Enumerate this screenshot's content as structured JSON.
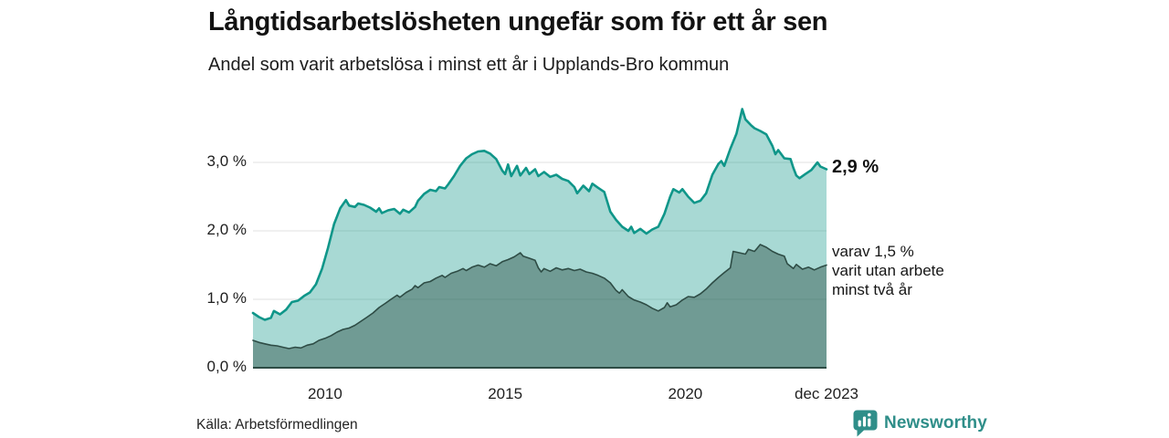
{
  "source": {
    "label": "Källa: Arbetsförmedlingen"
  },
  "logo": {
    "label": "Newsworthy",
    "color": "#2f8e89"
  },
  "colors": {
    "accent_teal": "#0f9689",
    "dark_slate": "#2e4c45",
    "gridline": "#e2e2e2",
    "light_fill": "rgba(15,150,137,0.36)",
    "dark_fill": "rgba(40,75,67,0.44)"
  },
  "chart_data": {
    "type": "area",
    "title": "Långtidsarbetslösheten ungefär som för ett år sen",
    "subtitle": "Andel som varit arbetslösa i minst ett år i Upplands-Bro kommun",
    "unit": "%",
    "grid": true,
    "x_axis": {
      "range": [
        2008.0,
        2023.92
      ],
      "ticks": [
        {
          "label": "2010",
          "t": 2010
        },
        {
          "label": "2015",
          "t": 2015
        },
        {
          "label": "2020",
          "t": 2020
        },
        {
          "label": "dec 2023",
          "t": 2023.92
        }
      ]
    },
    "y_axis": {
      "range": [
        0,
        4.04
      ],
      "ticks": [
        {
          "label": "0,0 %",
          "v": 0
        },
        {
          "label": "1,0 %",
          "v": 1
        },
        {
          "label": "2,0 %",
          "v": 2
        },
        {
          "label": "3,0 %",
          "v": 3
        }
      ]
    },
    "annotations": {
      "latest_value": "2,9 %",
      "secondary": "varav 1,5 %\nvarit utan arbete\nminst två år"
    },
    "series": [
      {
        "name": "Andel som varit arbetslösa i minst ett år",
        "line_color": "#0f9689",
        "fill_color": "rgba(15,150,137,0.36)",
        "line_width": 2.6,
        "end_value": 2.9,
        "points": [
          [
            2008.0,
            0.8
          ],
          [
            2008.17,
            0.74
          ],
          [
            2008.33,
            0.7
          ],
          [
            2008.5,
            0.73
          ],
          [
            2008.58,
            0.83
          ],
          [
            2008.75,
            0.78
          ],
          [
            2008.92,
            0.85
          ],
          [
            2009.08,
            0.96
          ],
          [
            2009.25,
            0.98
          ],
          [
            2009.42,
            1.05
          ],
          [
            2009.58,
            1.1
          ],
          [
            2009.75,
            1.22
          ],
          [
            2009.92,
            1.45
          ],
          [
            2010.08,
            1.75
          ],
          [
            2010.25,
            2.1
          ],
          [
            2010.42,
            2.33
          ],
          [
            2010.58,
            2.45
          ],
          [
            2010.67,
            2.37
          ],
          [
            2010.83,
            2.35
          ],
          [
            2010.92,
            2.4
          ],
          [
            2011.08,
            2.38
          ],
          [
            2011.25,
            2.34
          ],
          [
            2011.42,
            2.28
          ],
          [
            2011.5,
            2.33
          ],
          [
            2011.58,
            2.26
          ],
          [
            2011.75,
            2.3
          ],
          [
            2011.92,
            2.32
          ],
          [
            2012.08,
            2.25
          ],
          [
            2012.17,
            2.31
          ],
          [
            2012.33,
            2.27
          ],
          [
            2012.5,
            2.35
          ],
          [
            2012.58,
            2.44
          ],
          [
            2012.75,
            2.54
          ],
          [
            2012.92,
            2.6
          ],
          [
            2013.08,
            2.58
          ],
          [
            2013.17,
            2.64
          ],
          [
            2013.33,
            2.62
          ],
          [
            2013.42,
            2.68
          ],
          [
            2013.58,
            2.8
          ],
          [
            2013.75,
            2.95
          ],
          [
            2013.92,
            3.06
          ],
          [
            2014.08,
            3.12
          ],
          [
            2014.25,
            3.16
          ],
          [
            2014.42,
            3.17
          ],
          [
            2014.58,
            3.13
          ],
          [
            2014.75,
            3.05
          ],
          [
            2014.92,
            2.88
          ],
          [
            2015.0,
            2.83
          ],
          [
            2015.08,
            2.97
          ],
          [
            2015.17,
            2.8
          ],
          [
            2015.33,
            2.95
          ],
          [
            2015.42,
            2.81
          ],
          [
            2015.58,
            2.92
          ],
          [
            2015.67,
            2.83
          ],
          [
            2015.83,
            2.9
          ],
          [
            2015.92,
            2.8
          ],
          [
            2016.08,
            2.86
          ],
          [
            2016.25,
            2.79
          ],
          [
            2016.42,
            2.82
          ],
          [
            2016.58,
            2.76
          ],
          [
            2016.75,
            2.73
          ],
          [
            2016.92,
            2.64
          ],
          [
            2017.0,
            2.55
          ],
          [
            2017.17,
            2.66
          ],
          [
            2017.33,
            2.58
          ],
          [
            2017.42,
            2.69
          ],
          [
            2017.58,
            2.63
          ],
          [
            2017.75,
            2.57
          ],
          [
            2017.92,
            2.28
          ],
          [
            2018.08,
            2.16
          ],
          [
            2018.25,
            2.06
          ],
          [
            2018.42,
            2.0
          ],
          [
            2018.5,
            2.06
          ],
          [
            2018.58,
            1.97
          ],
          [
            2018.75,
            2.03
          ],
          [
            2018.92,
            1.96
          ],
          [
            2019.08,
            2.02
          ],
          [
            2019.25,
            2.06
          ],
          [
            2019.42,
            2.25
          ],
          [
            2019.58,
            2.5
          ],
          [
            2019.67,
            2.61
          ],
          [
            2019.83,
            2.56
          ],
          [
            2019.92,
            2.61
          ],
          [
            2020.08,
            2.5
          ],
          [
            2020.25,
            2.41
          ],
          [
            2020.42,
            2.44
          ],
          [
            2020.58,
            2.55
          ],
          [
            2020.75,
            2.82
          ],
          [
            2020.92,
            2.98
          ],
          [
            2021.0,
            3.02
          ],
          [
            2021.08,
            2.95
          ],
          [
            2021.25,
            3.2
          ],
          [
            2021.42,
            3.42
          ],
          [
            2021.58,
            3.78
          ],
          [
            2021.67,
            3.63
          ],
          [
            2021.83,
            3.54
          ],
          [
            2021.92,
            3.5
          ],
          [
            2022.08,
            3.46
          ],
          [
            2022.25,
            3.41
          ],
          [
            2022.42,
            3.24
          ],
          [
            2022.5,
            3.12
          ],
          [
            2022.58,
            3.18
          ],
          [
            2022.75,
            3.06
          ],
          [
            2022.92,
            3.05
          ],
          [
            2023.0,
            2.92
          ],
          [
            2023.08,
            2.81
          ],
          [
            2023.17,
            2.77
          ],
          [
            2023.33,
            2.83
          ],
          [
            2023.5,
            2.89
          ],
          [
            2023.67,
            3.0
          ],
          [
            2023.75,
            2.94
          ],
          [
            2023.92,
            2.9
          ]
        ]
      },
      {
        "name": "varav utan arbete minst två år",
        "line_color": "#2e4c45",
        "fill_color": "rgba(40,75,67,0.44)",
        "line_width": 1.6,
        "end_value": 1.5,
        "points": [
          [
            2008.0,
            0.4
          ],
          [
            2008.17,
            0.37
          ],
          [
            2008.33,
            0.35
          ],
          [
            2008.5,
            0.33
          ],
          [
            2008.67,
            0.32
          ],
          [
            2008.83,
            0.3
          ],
          [
            2009.0,
            0.28
          ],
          [
            2009.17,
            0.3
          ],
          [
            2009.33,
            0.29
          ],
          [
            2009.5,
            0.33
          ],
          [
            2009.67,
            0.35
          ],
          [
            2009.83,
            0.4
          ],
          [
            2010.0,
            0.43
          ],
          [
            2010.17,
            0.47
          ],
          [
            2010.33,
            0.52
          ],
          [
            2010.5,
            0.56
          ],
          [
            2010.67,
            0.58
          ],
          [
            2010.83,
            0.62
          ],
          [
            2011.0,
            0.68
          ],
          [
            2011.17,
            0.74
          ],
          [
            2011.33,
            0.8
          ],
          [
            2011.5,
            0.88
          ],
          [
            2011.67,
            0.94
          ],
          [
            2011.83,
            1.0
          ],
          [
            2012.0,
            1.06
          ],
          [
            2012.08,
            1.03
          ],
          [
            2012.25,
            1.1
          ],
          [
            2012.42,
            1.15
          ],
          [
            2012.5,
            1.2
          ],
          [
            2012.58,
            1.17
          ],
          [
            2012.75,
            1.24
          ],
          [
            2012.92,
            1.26
          ],
          [
            2013.08,
            1.31
          ],
          [
            2013.25,
            1.35
          ],
          [
            2013.33,
            1.32
          ],
          [
            2013.5,
            1.38
          ],
          [
            2013.67,
            1.41
          ],
          [
            2013.83,
            1.45
          ],
          [
            2013.92,
            1.42
          ],
          [
            2014.08,
            1.47
          ],
          [
            2014.25,
            1.5
          ],
          [
            2014.42,
            1.47
          ],
          [
            2014.58,
            1.52
          ],
          [
            2014.75,
            1.49
          ],
          [
            2014.92,
            1.55
          ],
          [
            2015.08,
            1.58
          ],
          [
            2015.25,
            1.62
          ],
          [
            2015.42,
            1.68
          ],
          [
            2015.5,
            1.63
          ],
          [
            2015.67,
            1.6
          ],
          [
            2015.83,
            1.57
          ],
          [
            2015.92,
            1.46
          ],
          [
            2016.0,
            1.4
          ],
          [
            2016.08,
            1.45
          ],
          [
            2016.25,
            1.41
          ],
          [
            2016.42,
            1.46
          ],
          [
            2016.58,
            1.43
          ],
          [
            2016.75,
            1.45
          ],
          [
            2016.92,
            1.42
          ],
          [
            2017.08,
            1.44
          ],
          [
            2017.25,
            1.4
          ],
          [
            2017.42,
            1.38
          ],
          [
            2017.58,
            1.35
          ],
          [
            2017.75,
            1.31
          ],
          [
            2017.92,
            1.24
          ],
          [
            2018.08,
            1.13
          ],
          [
            2018.17,
            1.09
          ],
          [
            2018.25,
            1.14
          ],
          [
            2018.42,
            1.04
          ],
          [
            2018.58,
            0.99
          ],
          [
            2018.75,
            0.96
          ],
          [
            2018.92,
            0.92
          ],
          [
            2019.08,
            0.87
          ],
          [
            2019.25,
            0.83
          ],
          [
            2019.42,
            0.88
          ],
          [
            2019.5,
            0.95
          ],
          [
            2019.58,
            0.89
          ],
          [
            2019.75,
            0.92
          ],
          [
            2019.92,
            0.99
          ],
          [
            2020.08,
            1.04
          ],
          [
            2020.25,
            1.03
          ],
          [
            2020.42,
            1.08
          ],
          [
            2020.58,
            1.15
          ],
          [
            2020.75,
            1.24
          ],
          [
            2020.92,
            1.32
          ],
          [
            2021.08,
            1.39
          ],
          [
            2021.25,
            1.46
          ],
          [
            2021.33,
            1.7
          ],
          [
            2021.5,
            1.68
          ],
          [
            2021.67,
            1.66
          ],
          [
            2021.75,
            1.73
          ],
          [
            2021.92,
            1.7
          ],
          [
            2022.0,
            1.75
          ],
          [
            2022.08,
            1.8
          ],
          [
            2022.25,
            1.76
          ],
          [
            2022.42,
            1.7
          ],
          [
            2022.58,
            1.66
          ],
          [
            2022.75,
            1.63
          ],
          [
            2022.83,
            1.52
          ],
          [
            2023.0,
            1.45
          ],
          [
            2023.08,
            1.51
          ],
          [
            2023.25,
            1.44
          ],
          [
            2023.42,
            1.47
          ],
          [
            2023.58,
            1.43
          ],
          [
            2023.75,
            1.47
          ],
          [
            2023.92,
            1.5
          ]
        ]
      }
    ]
  }
}
